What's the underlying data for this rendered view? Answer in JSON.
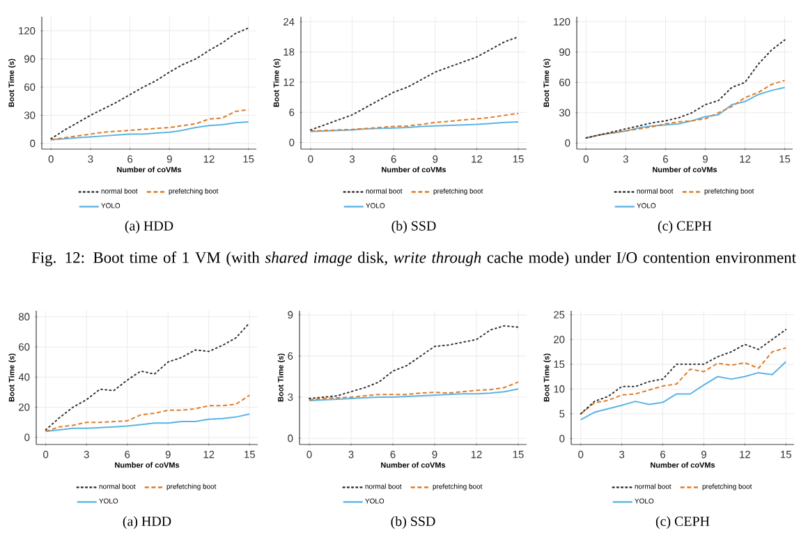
{
  "chart_data": [
    {
      "type": "line",
      "title": "(a) HDD",
      "xlabel": "Number of coVMs",
      "ylabel": "Boot Time (s)",
      "x": [
        0,
        1,
        2,
        3,
        4,
        5,
        6,
        7,
        8,
        9,
        10,
        11,
        12,
        13,
        14,
        15
      ],
      "xlim": [
        -0.7,
        15.6
      ],
      "xticks": [
        0,
        3,
        6,
        9,
        12,
        15
      ],
      "ylim": [
        -6,
        135
      ],
      "yticks": [
        0,
        30,
        60,
        90,
        120
      ],
      "grid": true,
      "legend": "bottom",
      "series": [
        {
          "name": "normal boot",
          "color": "#333333",
          "line_style": "dotted",
          "values": [
            5,
            14,
            22,
            30,
            37,
            44,
            52,
            60,
            67,
            76,
            84,
            90,
            99,
            107,
            117,
            123
          ]
        },
        {
          "name": "prefetching boot",
          "color": "#e07b28",
          "line_style": "dashed",
          "values": [
            4,
            6,
            8,
            10,
            12,
            13,
            14,
            15,
            16,
            17,
            19,
            21,
            26,
            27,
            34,
            36
          ]
        },
        {
          "name": "YOLO",
          "color": "#5ab4e5",
          "line_style": "solid",
          "values": [
            4,
            5,
            6,
            7,
            8,
            9,
            10,
            10,
            11,
            12,
            14,
            17,
            19,
            20,
            22,
            23
          ]
        }
      ]
    },
    {
      "type": "line",
      "title": "(b) SSD",
      "xlabel": "Number of coVMs",
      "ylabel": "Boot Time (s)",
      "annotations": [
        "Fig. 12: Boot time of 1 VM (with *shared image* disk, *write through* cache mode) under I/O contention environment"
      ],
      "x": [
        0,
        1,
        2,
        3,
        4,
        5,
        6,
        7,
        8,
        9,
        10,
        11,
        12,
        13,
        14,
        15
      ],
      "xlim": [
        -0.7,
        15.6
      ],
      "xticks": [
        0,
        3,
        6,
        9,
        12,
        15
      ],
      "ylim": [
        -1.3,
        25
      ],
      "yticks": [
        0,
        6,
        12,
        18,
        24
      ],
      "grid": true,
      "legend": "bottom",
      "series": [
        {
          "name": "normal boot",
          "color": "#333333",
          "line_style": "dotted",
          "values": [
            2.5,
            3.5,
            4.5,
            5.5,
            7,
            8.5,
            10,
            11,
            12.5,
            14,
            15,
            16,
            17,
            18.5,
            20,
            21
          ]
        },
        {
          "name": "prefetching boot",
          "color": "#e07b28",
          "line_style": "dashed",
          "values": [
            2.3,
            2.4,
            2.5,
            2.6,
            2.8,
            3,
            3.2,
            3.3,
            3.6,
            4,
            4.2,
            4.5,
            4.7,
            5,
            5.4,
            5.8
          ]
        },
        {
          "name": "YOLO",
          "color": "#5ab4e5",
          "line_style": "solid",
          "values": [
            2.2,
            2.3,
            2.4,
            2.5,
            2.7,
            2.8,
            2.9,
            3,
            3.2,
            3.3,
            3.4,
            3.5,
            3.6,
            3.8,
            4,
            4.1
          ]
        }
      ]
    },
    {
      "type": "line",
      "title": "(c) CEPH",
      "xlabel": "Number of coVMs",
      "ylabel": "Boot Time (s)",
      "x": [
        0,
        1,
        2,
        3,
        4,
        5,
        6,
        7,
        8,
        9,
        10,
        11,
        12,
        13,
        14,
        15
      ],
      "xlim": [
        -0.7,
        15.6
      ],
      "xticks": [
        0,
        3,
        6,
        9,
        12,
        15
      ],
      "ylim": [
        -6,
        125
      ],
      "yticks": [
        0,
        30,
        60,
        90,
        120
      ],
      "grid": true,
      "legend": "bottom",
      "series": [
        {
          "name": "normal boot",
          "color": "#333333",
          "line_style": "dotted",
          "values": [
            5,
            8,
            11,
            14,
            17,
            20,
            22,
            25,
            30,
            38,
            42,
            55,
            60,
            78,
            92,
            102
          ]
        },
        {
          "name": "prefetching boot",
          "color": "#e07b28",
          "line_style": "dashed",
          "values": [
            5,
            8,
            10,
            12,
            14,
            16,
            19,
            21,
            22,
            24,
            30,
            36,
            45,
            50,
            58,
            62
          ]
        },
        {
          "name": "YOLO",
          "color": "#5ab4e5",
          "line_style": "solid",
          "values": [
            5,
            8,
            10,
            12,
            15,
            17,
            18,
            19,
            22,
            26,
            28,
            38,
            41,
            48,
            52,
            55
          ]
        }
      ]
    },
    {
      "type": "line",
      "title": "(a) HDD",
      "xlabel": "Number of coVMs",
      "ylabel": "Boot Time (s)",
      "x": [
        0,
        1,
        2,
        3,
        4,
        5,
        6,
        7,
        8,
        9,
        10,
        11,
        12,
        13,
        14,
        15
      ],
      "xlim": [
        -0.7,
        15.6
      ],
      "xticks": [
        0,
        3,
        6,
        9,
        12,
        15
      ],
      "ylim": [
        -4.7,
        84
      ],
      "yticks": [
        0,
        20,
        40,
        60,
        80
      ],
      "grid": true,
      "legend": "bottom",
      "series": [
        {
          "name": "normal boot",
          "color": "#333333",
          "line_style": "dotted",
          "values": [
            5,
            13,
            20,
            25,
            32,
            31,
            38,
            44,
            42,
            50,
            53,
            58,
            57,
            61,
            66,
            76
          ]
        },
        {
          "name": "prefetching boot",
          "color": "#e07b28",
          "line_style": "dashed",
          "values": [
            4,
            7,
            8,
            10,
            10,
            10.5,
            11,
            15,
            16,
            18,
            18,
            19,
            21,
            21,
            22,
            28
          ]
        },
        {
          "name": "YOLO",
          "color": "#5ab4e5",
          "line_style": "solid",
          "values": [
            4,
            5,
            6,
            6,
            6.5,
            7,
            7.5,
            8.5,
            9.5,
            9.5,
            10.5,
            10.5,
            12,
            12.5,
            13.5,
            15.5
          ]
        }
      ]
    },
    {
      "type": "line",
      "title": "(b) SSD",
      "xlabel": "Number of coVMs",
      "ylabel": "Boot Time (s)",
      "x": [
        0,
        1,
        2,
        3,
        4,
        5,
        6,
        7,
        8,
        9,
        10,
        11,
        12,
        13,
        14,
        15
      ],
      "xlim": [
        -0.7,
        15.6
      ],
      "xticks": [
        0,
        3,
        6,
        9,
        12,
        15
      ],
      "ylim": [
        -0.45,
        9.3
      ],
      "yticks": [
        0,
        3,
        6,
        9
      ],
      "grid": true,
      "legend": "bottom",
      "series": [
        {
          "name": "normal boot",
          "color": "#333333",
          "line_style": "dotted",
          "values": [
            2.9,
            3,
            3.1,
            3.4,
            3.7,
            4.1,
            4.9,
            5.3,
            6,
            6.7,
            6.8,
            7,
            7.2,
            7.9,
            8.2,
            8.1
          ]
        },
        {
          "name": "prefetching boot",
          "color": "#e07b28",
          "line_style": "dashed",
          "values": [
            2.8,
            2.9,
            2.95,
            3,
            3.1,
            3.2,
            3.2,
            3.2,
            3.3,
            3.35,
            3.3,
            3.4,
            3.5,
            3.55,
            3.7,
            4.1
          ]
        },
        {
          "name": "YOLO",
          "color": "#5ab4e5",
          "line_style": "solid",
          "values": [
            2.75,
            2.8,
            2.85,
            2.9,
            2.95,
            3,
            3,
            3.05,
            3.1,
            3.15,
            3.2,
            3.25,
            3.25,
            3.3,
            3.4,
            3.6
          ]
        }
      ]
    },
    {
      "type": "line",
      "title": "(c) CEPH",
      "xlabel": "Number of coVMs",
      "ylabel": "Boot Time (s)",
      "x": [
        0,
        1,
        2,
        3,
        4,
        5,
        6,
        7,
        8,
        9,
        10,
        11,
        12,
        13,
        14,
        15
      ],
      "xlim": [
        -0.7,
        15.6
      ],
      "xticks": [
        0,
        3,
        6,
        9,
        12,
        15
      ],
      "ylim": [
        -1.2,
        25.8
      ],
      "yticks": [
        0,
        5,
        10,
        15,
        20,
        25
      ],
      "grid": true,
      "legend": "bottom",
      "series": [
        {
          "name": "normal boot",
          "color": "#333333",
          "line_style": "dotted",
          "values": [
            5,
            7.5,
            8.5,
            10.5,
            10.5,
            11.5,
            12,
            15,
            15,
            15,
            16.5,
            17.5,
            19,
            18,
            20,
            22
          ]
        },
        {
          "name": "prefetching boot",
          "color": "#e07b28",
          "line_style": "dashed",
          "values": [
            5,
            7.2,
            7.7,
            8.8,
            9,
            9.8,
            10.6,
            11,
            14,
            13.5,
            15.2,
            14.8,
            15.3,
            14.2,
            17.5,
            18.3
          ]
        },
        {
          "name": "YOLO",
          "color": "#5ab4e5",
          "line_style": "solid",
          "values": [
            3.8,
            5.3,
            6,
            6.7,
            7.5,
            6.9,
            7.3,
            9,
            9,
            10.8,
            12.5,
            12,
            12.5,
            13.3,
            12.9,
            15.5
          ]
        }
      ]
    }
  ]
}
